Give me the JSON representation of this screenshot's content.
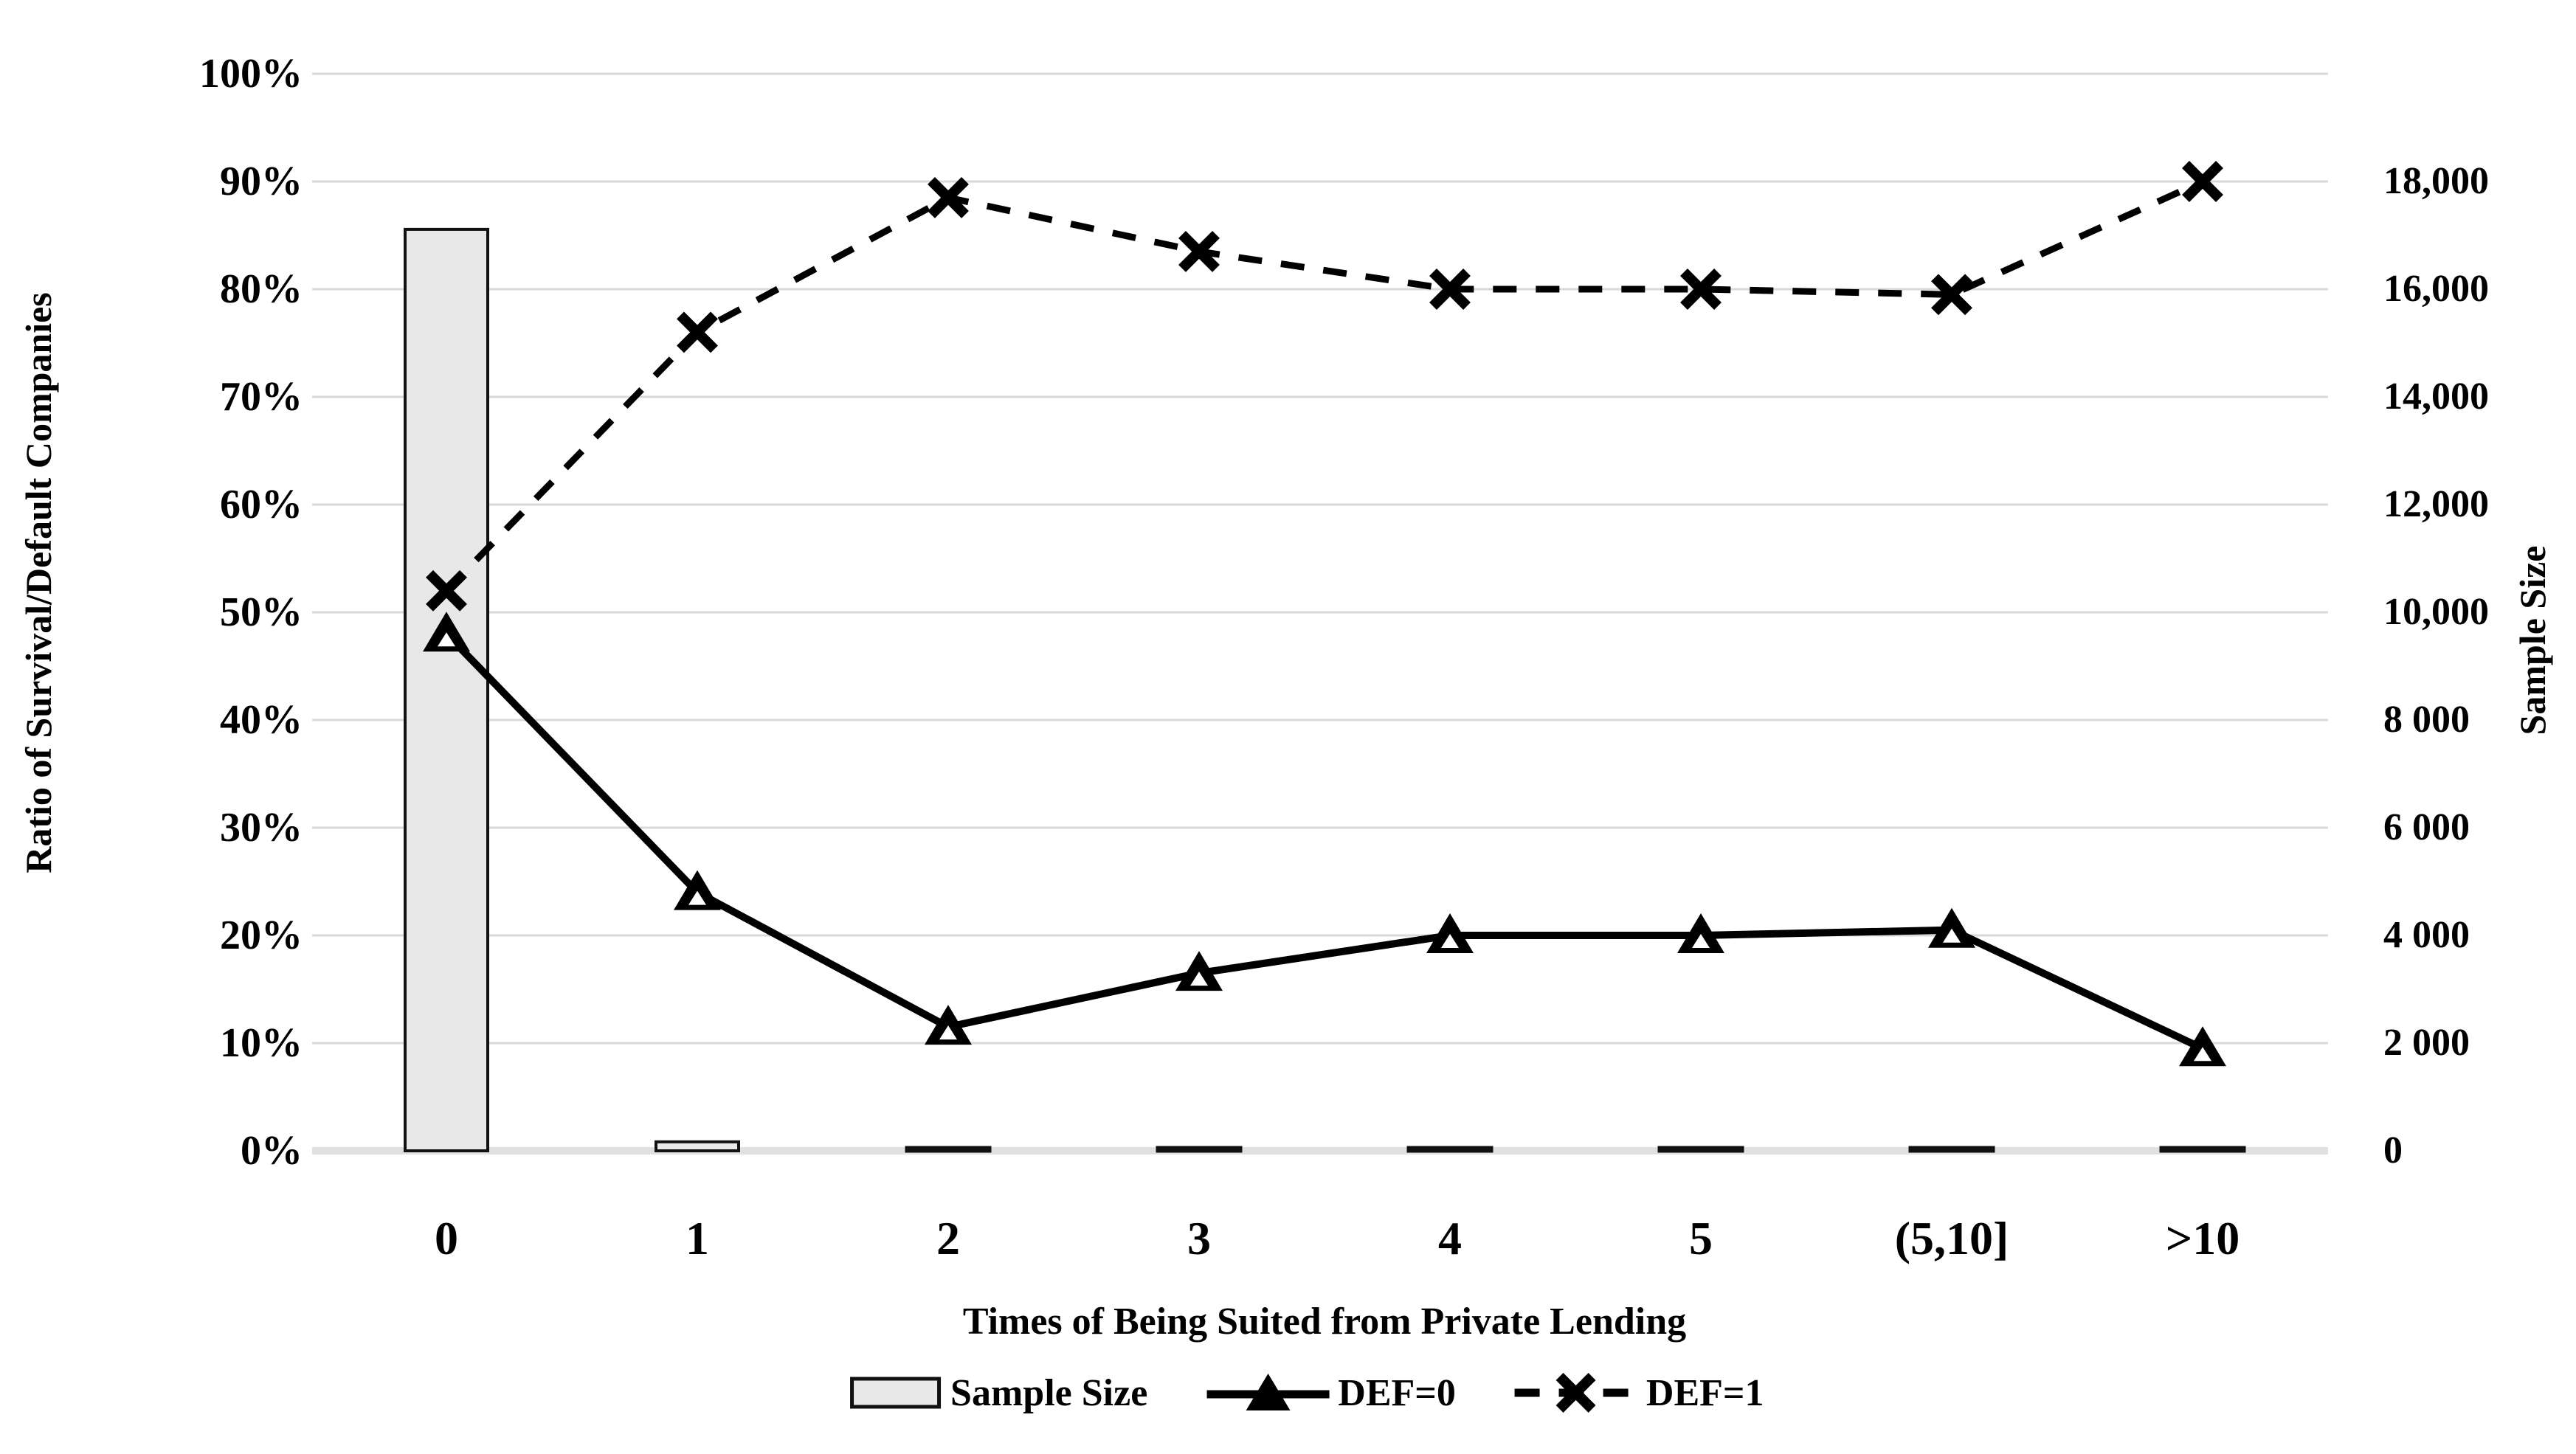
{
  "figure": {
    "background": "#ffffff",
    "text_color": "#000000",
    "grid_color": "#d9d9d9",
    "baseline_color": "#e0e0e0",
    "bar_fill": "#e8e8e8",
    "bar_border": "#111111",
    "line_color": "#000000"
  },
  "chart_data": {
    "type": "combo-bar-line",
    "categories": [
      "0",
      "1",
      "2",
      "3",
      "4",
      "5",
      "(5,10]",
      ">10"
    ],
    "xlabel": "Times of Being Suited from Private Lending",
    "left_axis": {
      "label": "Ratio of Survival/Default Companies",
      "min": 0,
      "max": 100,
      "tick_step": 10,
      "ticks": [
        "0%",
        "10%",
        "20%",
        "30%",
        "40%",
        "50%",
        "60%",
        "70%",
        "80%",
        "90%",
        "100%"
      ]
    },
    "right_axis": {
      "label": "Sample Size",
      "min": 0,
      "max": 18000,
      "tick_step": 2000,
      "ticks": [
        "0",
        "2 000",
        "4 000",
        "6 000",
        "8 000",
        "10,000",
        "12,000",
        "14,000",
        "16,000",
        "18,000"
      ]
    },
    "series": [
      {
        "name": "Sample Size",
        "type": "bar",
        "axis": "right",
        "marker": "bar-swatch",
        "values": [
          15400,
          150,
          50,
          40,
          30,
          25,
          40,
          30
        ]
      },
      {
        "name": "DEF=0",
        "type": "line",
        "style": "solid",
        "marker": "triangle",
        "axis": "left",
        "values_percent": [
          48,
          24,
          11.5,
          16.5,
          20,
          20,
          20.5,
          9.5
        ]
      },
      {
        "name": "DEF=1",
        "type": "line",
        "style": "dashed",
        "marker": "x",
        "axis": "left",
        "values_percent": [
          52,
          76,
          88.5,
          83.5,
          80,
          80,
          79.5,
          90
        ]
      }
    ],
    "legend": {
      "position": "bottom",
      "entries": [
        "Sample Size",
        "DEF=0",
        "DEF=1"
      ]
    },
    "grid": "horizontal"
  }
}
